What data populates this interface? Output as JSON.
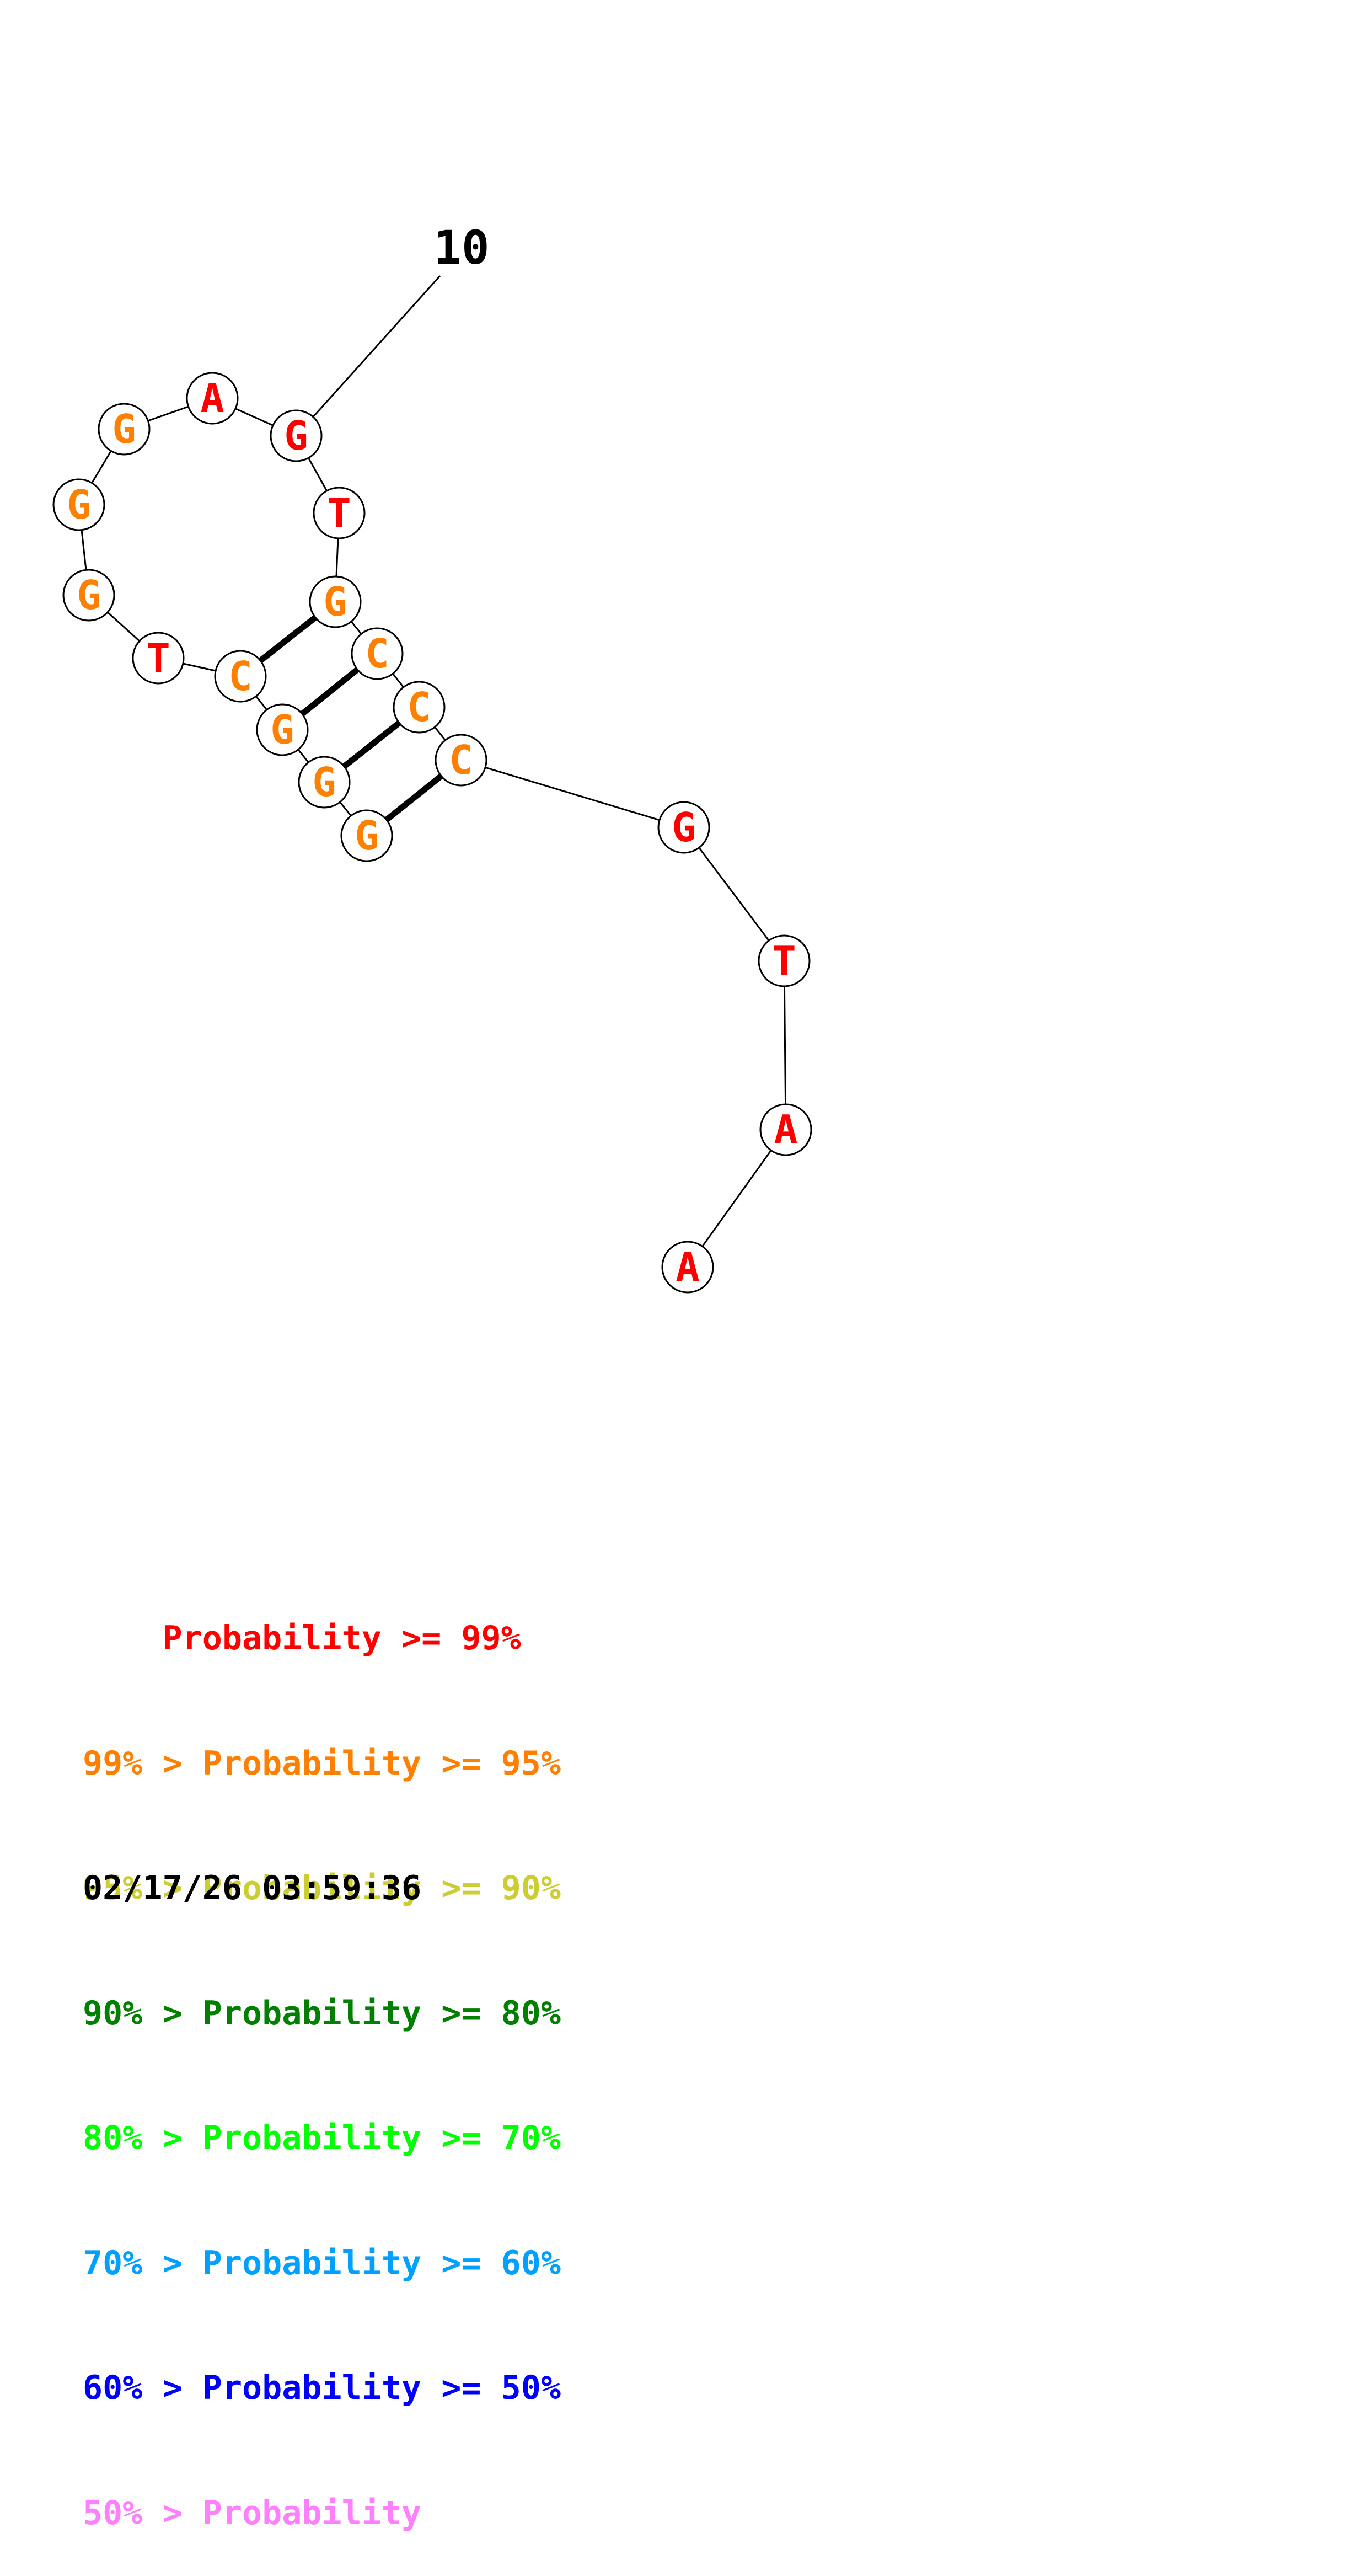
{
  "colors": {
    "p99": "#ff0000",
    "p95": "#ff8000",
    "p90": "#cccc33",
    "p80": "#007f00",
    "p70": "#00ff00",
    "p60": "#00a0ff",
    "p50": "#0000ff",
    "plow": "#ff80ff"
  },
  "diagram": {
    "position_marker": "10",
    "nucleotides": [
      {
        "base": "A",
        "color": "#ff0000"
      },
      {
        "base": "A",
        "color": "#ff0000"
      },
      {
        "base": "T",
        "color": "#ff0000"
      },
      {
        "base": "G",
        "color": "#ff0000"
      },
      {
        "base": "C",
        "color": "#ff8000"
      },
      {
        "base": "C",
        "color": "#ff8000"
      },
      {
        "base": "C",
        "color": "#ff8000"
      },
      {
        "base": "G",
        "color": "#ff8000"
      },
      {
        "base": "T",
        "color": "#ff0000"
      },
      {
        "base": "G",
        "color": "#ff0000"
      },
      {
        "base": "A",
        "color": "#ff0000"
      },
      {
        "base": "G",
        "color": "#ff8000"
      },
      {
        "base": "G",
        "color": "#ff8000"
      },
      {
        "base": "G",
        "color": "#ff8000"
      },
      {
        "base": "T",
        "color": "#ff0000"
      },
      {
        "base": "C",
        "color": "#ff8000"
      },
      {
        "base": "G",
        "color": "#ff8000"
      },
      {
        "base": "G",
        "color": "#ff8000"
      },
      {
        "base": "G",
        "color": "#ff8000"
      }
    ],
    "pairs": [
      [
        5,
        19
      ],
      [
        6,
        18
      ],
      [
        7,
        17
      ],
      [
        8,
        16
      ]
    ]
  },
  "legend": [
    {
      "prefix": "    ",
      "text": "Probability >= 99%",
      "color": "#ff0000"
    },
    {
      "prefix": "",
      "text": "99% > Probability >= 95%",
      "color": "#ff8000"
    },
    {
      "prefix": "",
      "text": "95% > Probability >= 90%",
      "color": "#cccc33"
    },
    {
      "prefix": "",
      "text": "90% > Probability >= 80%",
      "color": "#007f00"
    },
    {
      "prefix": "",
      "text": "80% > Probability >= 70%",
      "color": "#00ff00"
    },
    {
      "prefix": "",
      "text": "70% > Probability >= 60%",
      "color": "#00a0ff"
    },
    {
      "prefix": "",
      "text": "60% > Probability >= 50%",
      "color": "#0000ff"
    },
    {
      "prefix": "",
      "text": "50% > Probability",
      "color": "#ff80ff"
    }
  ],
  "timestamp": "02/17/26 03:59:36"
}
